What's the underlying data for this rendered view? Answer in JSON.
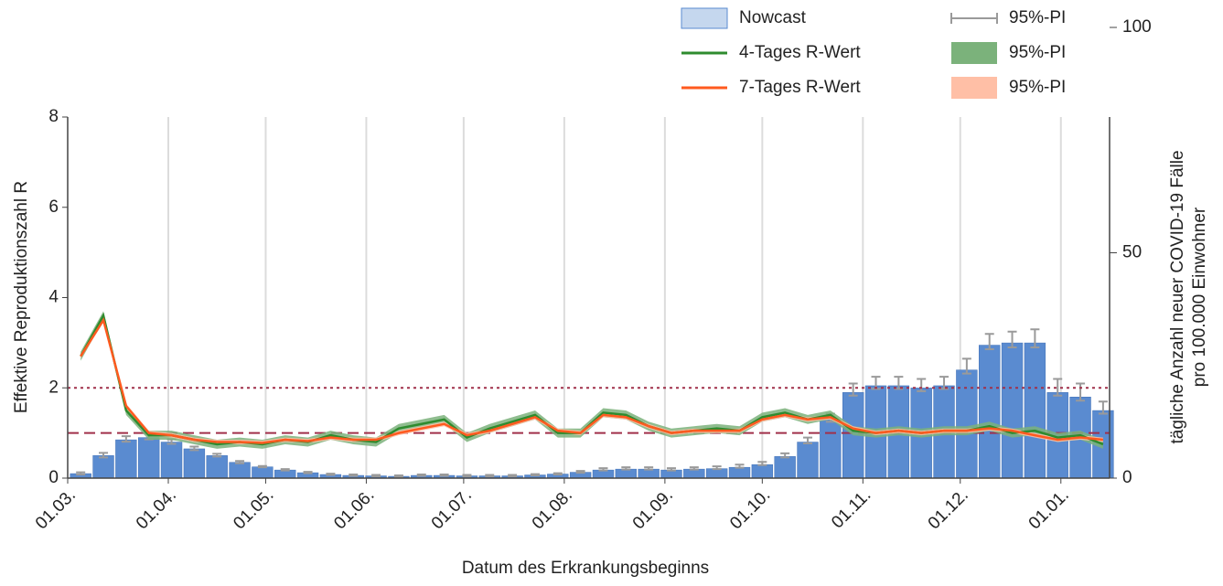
{
  "chart_data": {
    "type": "combo",
    "xlabel": "Datum des Erkrankungsbeginns",
    "ylabel": "Effektive Reproduktionszahl R",
    "y2label": [
      "tägliche Anzahl neuer COVID-19 Fälle",
      "pro 100.000 Einwohner"
    ],
    "x": [
      "05.03.",
      "12.03.",
      "19.03.",
      "26.03.",
      "02.04.",
      "09.04.",
      "16.04.",
      "23.04.",
      "30.04.",
      "07.05.",
      "14.05.",
      "21.05.",
      "28.05.",
      "04.06.",
      "11.06.",
      "18.06.",
      "25.06.",
      "02.07.",
      "09.07.",
      "16.07.",
      "23.07.",
      "30.07.",
      "06.08.",
      "13.08.",
      "20.08.",
      "27.08.",
      "03.09.",
      "10.09.",
      "17.09.",
      "24.09.",
      "01.10.",
      "08.10.",
      "15.10.",
      "22.10.",
      "29.10.",
      "05.11.",
      "12.11.",
      "19.11.",
      "26.11.",
      "03.12.",
      "10.12.",
      "17.12.",
      "24.12.",
      "31.12.",
      "07.01.",
      "14.01."
    ],
    "xlim": [
      "01.03.",
      "16.01."
    ],
    "xticks": [
      "01.03.",
      "01.04.",
      "01.05.",
      "01.06.",
      "01.07.",
      "01.08.",
      "01.09.",
      "01.10.",
      "01.11.",
      "01.12.",
      "01.01."
    ],
    "ylim": [
      0,
      8
    ],
    "yticks": [
      0,
      2,
      4,
      6,
      8
    ],
    "y2lim": [
      0,
      100
    ],
    "y2ticks": [
      0,
      50,
      100
    ],
    "xgrid": true,
    "hlines": [
      {
        "value": 2,
        "color": "#a0304a",
        "dash": "dotted"
      },
      {
        "value": 1,
        "color": "#a0304a",
        "dash": "dashed"
      }
    ],
    "series": [
      {
        "name": "Nowcast",
        "type": "bar",
        "axis": "y2",
        "color": "#5a8bd0",
        "pi_label": "95%-PI",
        "pi_color": "#9a9a9a",
        "values": [
          1,
          5,
          8.5,
          9,
          8,
          6.5,
          5,
          3.5,
          2.5,
          1.8,
          1.2,
          0.8,
          0.6,
          0.5,
          0.4,
          0.6,
          0.6,
          0.5,
          0.5,
          0.5,
          0.7,
          0.9,
          1.3,
          1.8,
          2,
          2,
          1.8,
          2,
          2.1,
          2.4,
          3,
          4.8,
          8,
          13,
          19,
          20.5,
          20.5,
          20,
          20.5,
          24,
          29.5,
          30,
          30,
          19,
          18,
          15
        ],
        "pi_lower": [
          0.8,
          4.6,
          8.1,
          8.6,
          7.6,
          6.2,
          4.8,
          3.3,
          2.4,
          1.7,
          1.1,
          0.7,
          0.5,
          0.4,
          0.3,
          0.5,
          0.5,
          0.4,
          0.4,
          0.4,
          0.6,
          0.8,
          1.2,
          1.7,
          1.9,
          1.9,
          1.7,
          1.9,
          2,
          2.3,
          2.9,
          4.6,
          7.7,
          12.5,
          18.3,
          19.8,
          19.8,
          19.3,
          19.8,
          23.2,
          28.6,
          29,
          29,
          18.3,
          17.2,
          14.3
        ],
        "pi_upper": [
          1.3,
          5.6,
          9.3,
          9.8,
          8.6,
          7,
          5.4,
          3.8,
          2.7,
          2,
          1.4,
          1,
          0.8,
          0.7,
          0.6,
          0.8,
          0.8,
          0.7,
          0.7,
          0.7,
          0.9,
          1.1,
          1.6,
          2.2,
          2.4,
          2.4,
          2.2,
          2.4,
          2.6,
          3,
          3.6,
          5.5,
          9,
          14.3,
          21,
          22.5,
          22.5,
          22,
          22.5,
          26.5,
          32,
          32.5,
          33,
          22,
          21,
          17
        ]
      },
      {
        "name": "4-Tages R-Wert",
        "type": "line",
        "color": "#2e8b2e",
        "pi_label": "95%-PI",
        "pi_color": "#7bb27b",
        "values": [
          2.7,
          3.6,
          1.5,
          0.95,
          0.95,
          0.85,
          0.75,
          0.8,
          0.75,
          0.85,
          0.8,
          0.95,
          0.85,
          0.8,
          1.1,
          1.2,
          1.3,
          0.9,
          1.1,
          1.25,
          1.4,
          1,
          1,
          1.45,
          1.4,
          1.15,
          1,
          1.05,
          1.1,
          1.05,
          1.35,
          1.45,
          1.3,
          1.4,
          1.05,
          1,
          1.05,
          1,
          1.05,
          1.05,
          1.15,
          1,
          1.05,
          0.9,
          0.95,
          0.75
        ],
        "pi_lower": [
          2.6,
          3.5,
          1.4,
          0.85,
          0.85,
          0.75,
          0.65,
          0.7,
          0.65,
          0.75,
          0.7,
          0.85,
          0.75,
          0.7,
          1,
          1.1,
          1.2,
          0.8,
          1,
          1.15,
          1.3,
          0.9,
          0.9,
          1.35,
          1.3,
          1.05,
          0.9,
          0.95,
          1,
          0.95,
          1.25,
          1.35,
          1.2,
          1.3,
          0.95,
          0.9,
          0.95,
          0.9,
          0.95,
          0.95,
          1.05,
          0.9,
          0.95,
          0.8,
          0.85,
          0.65
        ],
        "pi_upper": [
          2.8,
          3.7,
          1.6,
          1.05,
          1.05,
          0.95,
          0.85,
          0.9,
          0.85,
          0.95,
          0.9,
          1.05,
          0.95,
          0.9,
          1.2,
          1.3,
          1.4,
          1,
          1.2,
          1.35,
          1.5,
          1.1,
          1.1,
          1.55,
          1.5,
          1.25,
          1.1,
          1.15,
          1.2,
          1.15,
          1.45,
          1.55,
          1.4,
          1.5,
          1.15,
          1.1,
          1.15,
          1.1,
          1.15,
          1.15,
          1.25,
          1.1,
          1.15,
          1,
          1.05,
          0.85
        ]
      },
      {
        "name": "7-Tages R-Wert",
        "type": "line",
        "color": "#ff5a1f",
        "pi_label": "95%-PI",
        "pi_color": "#ffbfa6",
        "values": [
          2.7,
          3.5,
          1.6,
          1,
          0.95,
          0.85,
          0.8,
          0.8,
          0.78,
          0.85,
          0.82,
          0.9,
          0.85,
          0.85,
          1,
          1.1,
          1.2,
          0.95,
          1.05,
          1.2,
          1.35,
          1.05,
          1,
          1.4,
          1.35,
          1.15,
          1,
          1.05,
          1.05,
          1.05,
          1.3,
          1.4,
          1.3,
          1.35,
          1.1,
          1,
          1.05,
          1,
          1.05,
          1.05,
          1.1,
          1.05,
          0.95,
          0.85,
          0.9,
          0.85
        ],
        "pi_lower": [
          2.65,
          3.45,
          1.55,
          0.95,
          0.9,
          0.8,
          0.75,
          0.75,
          0.73,
          0.8,
          0.77,
          0.85,
          0.8,
          0.8,
          0.95,
          1.05,
          1.15,
          0.9,
          1,
          1.15,
          1.3,
          1,
          0.95,
          1.35,
          1.3,
          1.1,
          0.95,
          1,
          1,
          1,
          1.25,
          1.35,
          1.25,
          1.3,
          1.05,
          0.95,
          1,
          0.95,
          1,
          1,
          1.05,
          1,
          0.9,
          0.8,
          0.85,
          0.8
        ],
        "pi_upper": [
          2.75,
          3.55,
          1.65,
          1.05,
          1,
          0.9,
          0.85,
          0.85,
          0.83,
          0.9,
          0.87,
          0.95,
          0.9,
          0.9,
          1.05,
          1.15,
          1.25,
          1,
          1.1,
          1.25,
          1.4,
          1.1,
          1.05,
          1.45,
          1.4,
          1.2,
          1.05,
          1.1,
          1.1,
          1.1,
          1.35,
          1.45,
          1.35,
          1.4,
          1.15,
          1.05,
          1.1,
          1.05,
          1.1,
          1.1,
          1.15,
          1.1,
          1,
          0.9,
          0.95,
          0.9
        ]
      }
    ]
  }
}
